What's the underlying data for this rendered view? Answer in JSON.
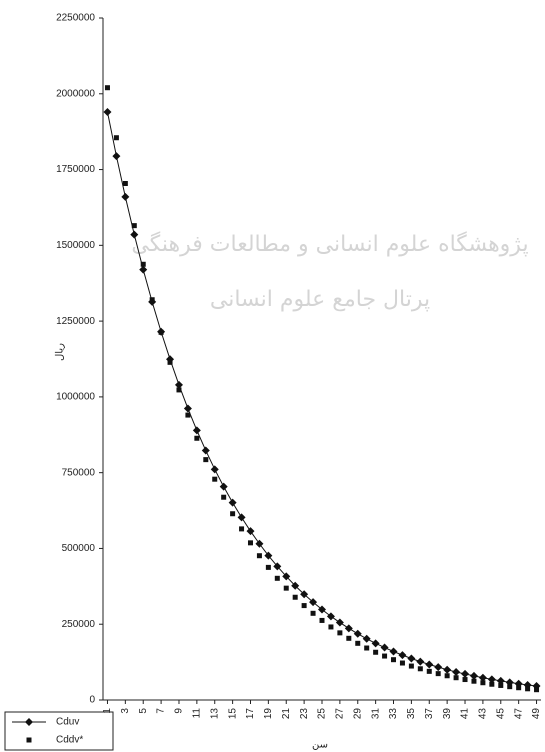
{
  "chart_data": {
    "type": "line",
    "watermark": [
      "پژوهشگاه علوم انسانی و مطالعات فرهنگی",
      "پرتال جامع علوم انسانی"
    ],
    "y_label": "ریال",
    "x_label": "سن",
    "x": [
      1,
      2,
      3,
      4,
      5,
      6,
      7,
      8,
      9,
      10,
      11,
      12,
      13,
      14,
      15,
      16,
      17,
      18,
      19,
      20,
      21,
      22,
      23,
      24,
      25,
      26,
      27,
      28,
      29,
      30,
      31,
      32,
      33,
      34,
      35,
      36,
      37,
      38,
      39,
      40,
      41,
      42,
      43,
      44,
      45,
      46,
      47,
      48,
      49
    ],
    "xlim": [
      0.5,
      49.5
    ],
    "xticks": [
      1,
      3,
      5,
      7,
      9,
      11,
      13,
      15,
      17,
      19,
      21,
      23,
      25,
      27,
      29,
      31,
      33,
      35,
      37,
      39,
      41,
      43,
      45,
      47,
      49
    ],
    "ylim": [
      0,
      2250000
    ],
    "yticks": [
      0,
      250000,
      500000,
      750000,
      1000000,
      1250000,
      1500000,
      1750000,
      2000000,
      2250000
    ],
    "legend": "bottom-left",
    "series": [
      {
        "name": "Cduv",
        "color": "#111111",
        "marker": "diamond",
        "values": [
          1940000,
          1794500,
          1660000,
          1535500,
          1420000,
          1313500,
          1215000,
          1124000,
          1039500,
          961500,
          889500,
          823000,
          761000,
          704000,
          651000,
          602500,
          557000,
          515500,
          476500,
          441000,
          408000,
          377000,
          349000,
          323000,
          298500,
          276000,
          255500,
          236500,
          218500,
          202000,
          187000,
          173000,
          160000,
          148000,
          137000,
          126500,
          117000,
          108500,
          100000,
          92500,
          86000,
          79500,
          73500,
          68000,
          63000,
          58000,
          53500,
          49500,
          46000
        ]
      },
      {
        "name": "Cddv*",
        "color": "#111111",
        "marker": "square",
        "values": [
          2020000,
          1855000,
          1704000,
          1565000,
          1437500,
          1320500,
          1213000,
          1114000,
          1023000,
          940000,
          863500,
          793000,
          728500,
          669000,
          614500,
          564500,
          518500,
          476000,
          437500,
          401500,
          369000,
          339000,
          311500,
          286000,
          262500,
          241000,
          221500,
          203500,
          187000,
          171500,
          157500,
          145000,
          133000,
          122000,
          112000,
          103000,
          94500,
          87000,
          80000,
          73500,
          67500,
          62000,
          57000,
          52000,
          48000,
          44000,
          40500,
          37000,
          34000
        ]
      }
    ]
  }
}
